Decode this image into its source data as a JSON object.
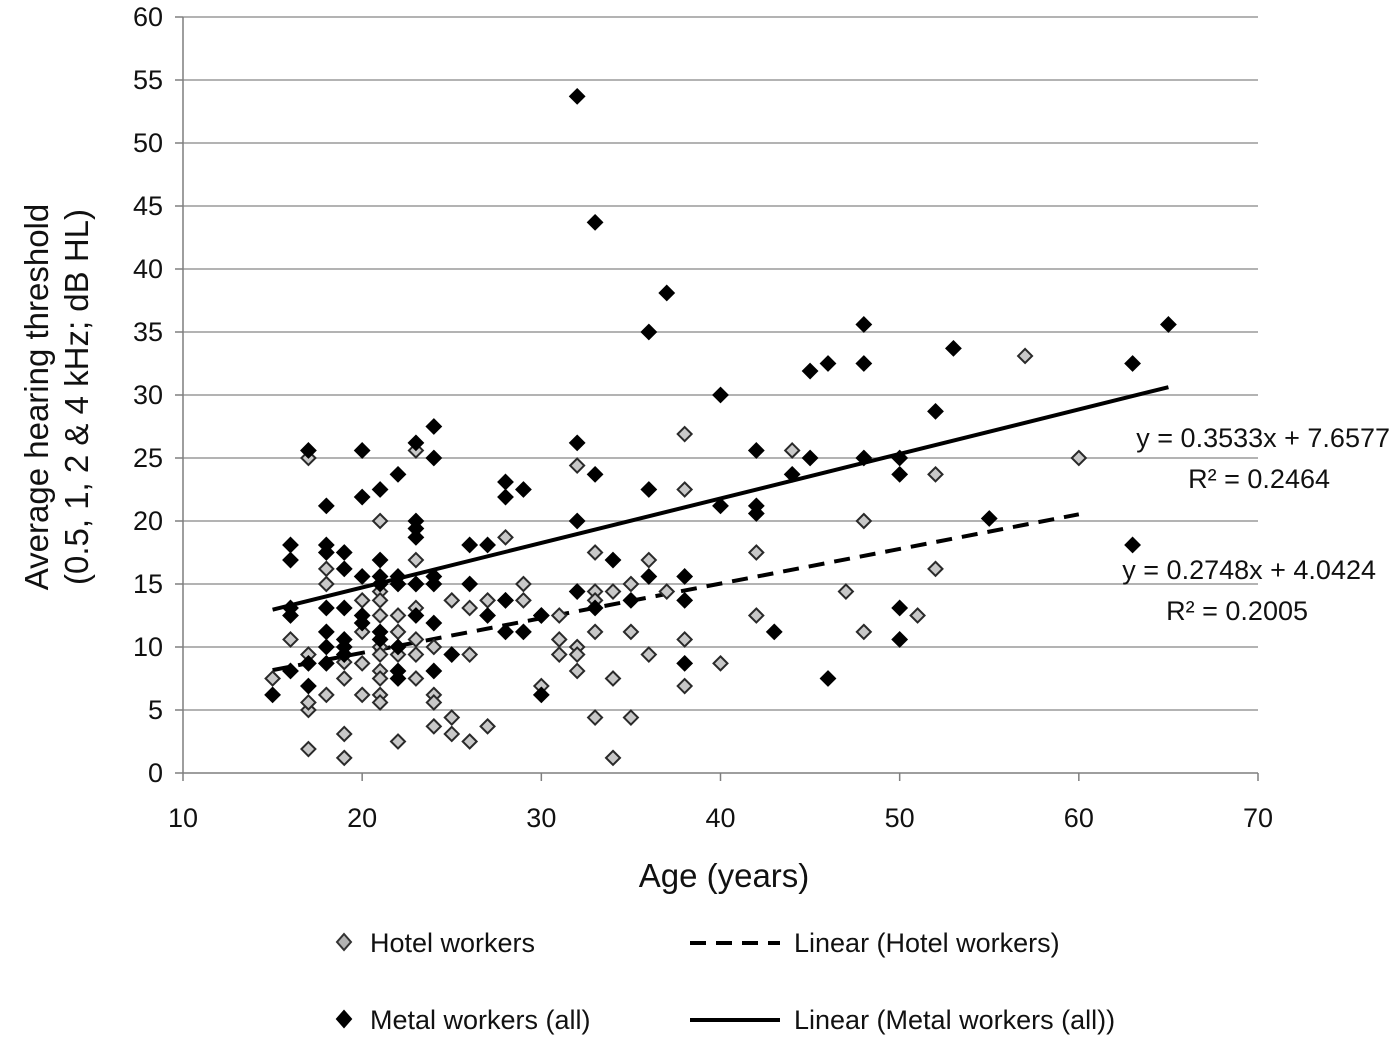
{
  "chart_data": {
    "type": "scatter",
    "xlabel": "Age (years)",
    "ylabel_lines": [
      "Average hearing threshold",
      "(0.5, 1, 2 & 4 kHz; dB HL)"
    ],
    "xlim": [
      10,
      70
    ],
    "ylim": [
      0,
      60
    ],
    "x_ticks": [
      "10",
      "20",
      "30",
      "40",
      "50",
      "60",
      "70"
    ],
    "y_ticks": [
      "0",
      "5",
      "10",
      "15",
      "20",
      "25",
      "30",
      "35",
      "40",
      "45",
      "50",
      "55",
      "60"
    ],
    "grid": "horizontal",
    "legend_position": "bottom",
    "series": [
      {
        "name": "Hotel workers",
        "marker": "diamond-open",
        "color": "#a6a6a6",
        "points": [
          [
            15,
            7.5
          ],
          [
            16,
            10.6
          ],
          [
            17,
            9.4
          ],
          [
            17,
            5
          ],
          [
            17,
            5.6
          ],
          [
            17,
            25
          ],
          [
            17,
            1.9
          ],
          [
            18,
            16.2
          ],
          [
            18,
            15
          ],
          [
            18,
            6.2
          ],
          [
            19,
            8.8
          ],
          [
            19,
            7.5
          ],
          [
            19,
            3.1
          ],
          [
            19,
            1.2
          ],
          [
            20,
            13.7
          ],
          [
            20,
            11.2
          ],
          [
            20,
            8.7
          ],
          [
            20,
            6.2
          ],
          [
            21,
            20
          ],
          [
            21,
            14.4
          ],
          [
            21,
            13.7
          ],
          [
            21,
            12.5
          ],
          [
            21,
            10
          ],
          [
            21,
            9.4
          ],
          [
            21,
            8.1
          ],
          [
            21,
            7.5
          ],
          [
            21,
            6.2
          ],
          [
            21,
            5.6
          ],
          [
            22,
            12.5
          ],
          [
            22,
            11.2
          ],
          [
            22,
            9.4
          ],
          [
            22,
            2.5
          ],
          [
            23,
            25.6
          ],
          [
            23,
            16.9
          ],
          [
            23,
            15
          ],
          [
            23,
            13.1
          ],
          [
            23,
            10.6
          ],
          [
            23,
            9.4
          ],
          [
            23,
            7.5
          ],
          [
            24,
            10
          ],
          [
            24,
            6.2
          ],
          [
            24,
            5.6
          ],
          [
            24,
            3.7
          ],
          [
            25,
            13.7
          ],
          [
            25,
            4.4
          ],
          [
            25,
            3.1
          ],
          [
            26,
            13.1
          ],
          [
            26,
            9.4
          ],
          [
            26,
            2.5
          ],
          [
            27,
            13.7
          ],
          [
            27,
            3.7
          ],
          [
            28,
            18.7
          ],
          [
            28,
            13.7
          ],
          [
            29,
            15
          ],
          [
            29,
            13.7
          ],
          [
            30,
            12.5
          ],
          [
            30,
            6.9
          ],
          [
            31,
            12.5
          ],
          [
            31,
            10.6
          ],
          [
            31,
            9.4
          ],
          [
            32,
            24.4
          ],
          [
            32,
            10
          ],
          [
            32,
            9.4
          ],
          [
            32,
            8.1
          ],
          [
            33,
            17.5
          ],
          [
            33,
            14.4
          ],
          [
            33,
            13.7
          ],
          [
            33,
            11.2
          ],
          [
            33,
            4.4
          ],
          [
            34,
            14.4
          ],
          [
            34,
            7.5
          ],
          [
            34,
            1.2
          ],
          [
            35,
            15
          ],
          [
            35,
            11.2
          ],
          [
            35,
            4.4
          ],
          [
            36,
            16.9
          ],
          [
            36,
            9.4
          ],
          [
            37,
            14.4
          ],
          [
            38,
            26.9
          ],
          [
            38,
            22.5
          ],
          [
            38,
            10.6
          ],
          [
            38,
            6.9
          ],
          [
            40,
            8.7
          ],
          [
            42,
            17.5
          ],
          [
            42,
            12.5
          ],
          [
            44,
            25.6
          ],
          [
            47,
            14.4
          ],
          [
            48,
            20
          ],
          [
            48,
            11.2
          ],
          [
            51,
            12.5
          ],
          [
            52,
            23.7
          ],
          [
            52,
            16.2
          ],
          [
            57,
            33.1
          ],
          [
            60,
            25
          ]
        ]
      },
      {
        "name": "Metal workers (all)",
        "marker": "diamond-filled",
        "color": "#000000",
        "points": [
          [
            15,
            6.2
          ],
          [
            16,
            18.1
          ],
          [
            16,
            16.9
          ],
          [
            16,
            13.1
          ],
          [
            16,
            12.5
          ],
          [
            16,
            8.1
          ],
          [
            17,
            25.6
          ],
          [
            17,
            8.7
          ],
          [
            17,
            6.9
          ],
          [
            18,
            21.2
          ],
          [
            18,
            18.1
          ],
          [
            18,
            17.5
          ],
          [
            18,
            13.1
          ],
          [
            18,
            11.2
          ],
          [
            18,
            10
          ],
          [
            18,
            8.7
          ],
          [
            19,
            17.5
          ],
          [
            19,
            16.2
          ],
          [
            19,
            13.1
          ],
          [
            19,
            10.6
          ],
          [
            19,
            10
          ],
          [
            19,
            9.4
          ],
          [
            20,
            25.6
          ],
          [
            20,
            21.9
          ],
          [
            20,
            15.6
          ],
          [
            20,
            12.5
          ],
          [
            20,
            11.9
          ],
          [
            21,
            22.5
          ],
          [
            21,
            16.9
          ],
          [
            21,
            15.6
          ],
          [
            21,
            15
          ],
          [
            21,
            11.2
          ],
          [
            21,
            10.6
          ],
          [
            22,
            23.7
          ],
          [
            22,
            15.6
          ],
          [
            22,
            15
          ],
          [
            22,
            10
          ],
          [
            22,
            8.1
          ],
          [
            22,
            7.5
          ],
          [
            23,
            26.2
          ],
          [
            23,
            20
          ],
          [
            23,
            19.4
          ],
          [
            23,
            18.7
          ],
          [
            23,
            15
          ],
          [
            23,
            12.5
          ],
          [
            24,
            27.5
          ],
          [
            24,
            25
          ],
          [
            24,
            15.6
          ],
          [
            24,
            15
          ],
          [
            24,
            11.9
          ],
          [
            24,
            8.1
          ],
          [
            25,
            9.4
          ],
          [
            26,
            18.1
          ],
          [
            26,
            15
          ],
          [
            27,
            18.1
          ],
          [
            27,
            12.5
          ],
          [
            28,
            23.1
          ],
          [
            28,
            21.9
          ],
          [
            28,
            13.7
          ],
          [
            28,
            11.2
          ],
          [
            29,
            22.5
          ],
          [
            29,
            11.2
          ],
          [
            30,
            12.5
          ],
          [
            30,
            6.2
          ],
          [
            32,
            53.7
          ],
          [
            32,
            26.2
          ],
          [
            32,
            20
          ],
          [
            32,
            14.4
          ],
          [
            33,
            43.7
          ],
          [
            33,
            23.7
          ],
          [
            33,
            13.1
          ],
          [
            34,
            16.9
          ],
          [
            35,
            13.7
          ],
          [
            36,
            35
          ],
          [
            36,
            22.5
          ],
          [
            36,
            15.6
          ],
          [
            37,
            38.1
          ],
          [
            38,
            15.6
          ],
          [
            38,
            13.7
          ],
          [
            38,
            8.7
          ],
          [
            40,
            30
          ],
          [
            40,
            21.2
          ],
          [
            42,
            25.6
          ],
          [
            42,
            21.2
          ],
          [
            42,
            20.6
          ],
          [
            43,
            11.2
          ],
          [
            44,
            23.7
          ],
          [
            45,
            31.9
          ],
          [
            45,
            25
          ],
          [
            46,
            32.5
          ],
          [
            46,
            7.5
          ],
          [
            48,
            35.6
          ],
          [
            48,
            32.5
          ],
          [
            48,
            25
          ],
          [
            50,
            25
          ],
          [
            50,
            23.7
          ],
          [
            50,
            13.1
          ],
          [
            50,
            10.6
          ],
          [
            52,
            28.7
          ],
          [
            53,
            33.7
          ],
          [
            55,
            20.2
          ],
          [
            63,
            32.5
          ],
          [
            63,
            18.1
          ],
          [
            65,
            35.6
          ]
        ]
      }
    ],
    "trendlines": [
      {
        "name": "Linear (Hotel workers)",
        "style": "dashed",
        "color": "#000000",
        "slope": 0.2748,
        "intercept": 4.0424,
        "x_range": [
          15,
          60
        ],
        "equation": "y = 0.2748x + 4.0424",
        "r2": "R² = 0.2005"
      },
      {
        "name": "Linear (Metal workers (all))",
        "style": "solid",
        "color": "#000000",
        "slope": 0.3533,
        "intercept": 7.6577,
        "x_range": [
          15,
          65
        ],
        "equation": "y = 0.3533x + 7.6577",
        "r2": "R² = 0.2464"
      }
    ],
    "legend": [
      {
        "label": "Hotel workers",
        "kind": "diamond-open"
      },
      {
        "label": "Linear (Hotel workers)",
        "kind": "dashed-line"
      },
      {
        "label": "Metal workers (all)",
        "kind": "diamond-filled"
      },
      {
        "label": "Linear (Metal workers (all))",
        "kind": "solid-line"
      }
    ]
  }
}
